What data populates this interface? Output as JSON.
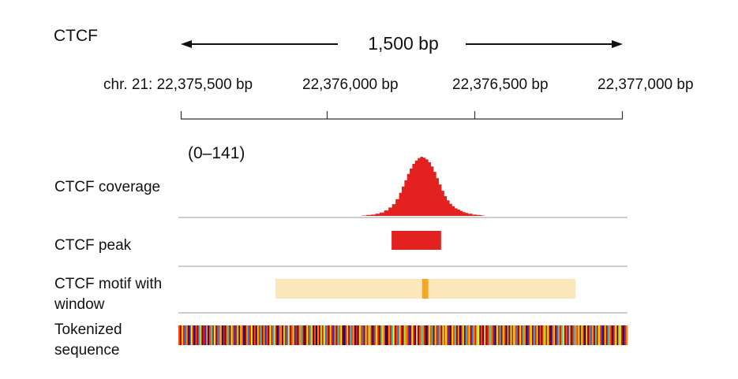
{
  "title": "CTCF",
  "span": {
    "label": "1,500 bp"
  },
  "coordinates": [
    "chr. 21: 22,375,500 bp",
    "22,376,000 bp",
    "22,376,500 bp",
    "22,377,000 bp"
  ],
  "coverage": {
    "label": "CTCF coverage",
    "scale": "(0–141)",
    "color": "#e3211e",
    "max": 141,
    "profile": [
      [
        0.41,
        1
      ],
      [
        0.42,
        2
      ],
      [
        0.43,
        3
      ],
      [
        0.44,
        5
      ],
      [
        0.45,
        8
      ],
      [
        0.46,
        13
      ],
      [
        0.47,
        20
      ],
      [
        0.478,
        28
      ],
      [
        0.486,
        40
      ],
      [
        0.494,
        55
      ],
      [
        0.5,
        70
      ],
      [
        0.506,
        85
      ],
      [
        0.512,
        100
      ],
      [
        0.518,
        113
      ],
      [
        0.524,
        124
      ],
      [
        0.53,
        132
      ],
      [
        0.536,
        138
      ],
      [
        0.542,
        141
      ],
      [
        0.548,
        139
      ],
      [
        0.554,
        135
      ],
      [
        0.56,
        128
      ],
      [
        0.566,
        118
      ],
      [
        0.572,
        105
      ],
      [
        0.578,
        90
      ],
      [
        0.584,
        75
      ],
      [
        0.59,
        60
      ],
      [
        0.596,
        47
      ],
      [
        0.602,
        37
      ],
      [
        0.608,
        29
      ],
      [
        0.614,
        23
      ],
      [
        0.62,
        18
      ],
      [
        0.626,
        15
      ],
      [
        0.632,
        12
      ],
      [
        0.638,
        9
      ],
      [
        0.644,
        7
      ],
      [
        0.65,
        5
      ],
      [
        0.66,
        3
      ],
      [
        0.67,
        2
      ],
      [
        0.68,
        1
      ]
    ]
  },
  "peak": {
    "label": "CTCF peak",
    "color": "#e3211e",
    "start_fraction": 0.477,
    "end_fraction": 0.589
  },
  "motif": {
    "label": "CTCF motif with window",
    "window_color": "#fbe7bb",
    "motif_color": "#f5a623",
    "window_start_fraction": 0.214,
    "window_end_fraction": 0.893,
    "motif_start_fraction": 0.546,
    "motif_end_fraction": 0.56
  },
  "tokens": {
    "label": "Tokenized sequence",
    "palette": [
      "#7f0000",
      "#b50000",
      "#e02016",
      "#ff4a0a",
      "#ff8c00",
      "#ffc800",
      "#f2f20a",
      "#9ee84a",
      "#2ed1a0",
      "#1fb8d8",
      "#1e78e8",
      "#1f2fd0",
      "#0a0a8c",
      "#3a006a"
    ],
    "sequence": [
      3,
      1,
      5,
      2,
      10,
      4,
      0,
      11,
      6,
      2,
      12,
      3,
      1,
      9,
      5,
      0,
      2,
      11,
      4,
      13,
      3,
      8,
      2,
      6,
      1,
      10,
      3,
      5,
      12,
      2,
      0,
      4,
      9,
      1,
      6,
      3,
      11,
      2,
      7,
      0,
      5,
      3,
      12,
      1,
      4,
      10,
      2,
      6,
      0,
      3,
      13,
      5,
      2,
      8,
      1,
      4,
      11,
      3,
      0,
      6,
      2,
      9,
      5,
      1,
      12,
      3,
      4,
      0,
      7,
      2,
      10,
      6,
      1,
      3,
      5,
      11,
      2,
      0,
      4,
      8,
      3,
      13,
      1,
      6,
      2,
      9,
      5,
      0,
      3,
      12,
      4,
      1,
      7,
      2,
      6,
      10,
      3,
      0,
      5,
      2,
      11,
      4,
      1,
      8,
      3,
      6,
      0,
      12,
      2,
      5,
      1,
      9,
      3,
      4,
      13,
      2,
      0,
      6,
      3,
      10,
      1,
      5,
      2,
      7,
      4,
      0,
      11,
      3,
      6,
      2,
      1,
      8,
      5,
      3,
      12,
      0,
      4,
      2,
      9,
      6,
      1,
      3,
      10,
      5,
      2,
      0,
      7,
      4,
      3,
      11,
      1,
      6,
      2,
      13,
      5,
      0,
      3,
      8,
      4,
      2,
      12,
      1,
      6,
      3,
      9,
      0,
      5,
      2,
      10,
      4,
      1,
      7,
      3,
      6,
      2,
      11,
      0,
      5,
      3,
      8,
      1,
      4,
      12,
      2,
      6,
      0,
      9,
      3,
      5,
      1,
      10,
      4,
      2,
      7,
      6,
      0,
      3,
      13,
      5,
      1,
      2,
      8,
      4,
      3,
      11,
      0,
      6,
      2,
      9,
      1,
      5,
      3,
      12,
      4,
      0,
      7,
      2,
      6,
      3,
      10,
      1,
      5,
      2,
      8,
      4,
      0,
      11,
      3,
      6,
      1,
      9,
      2,
      5,
      13,
      3,
      0,
      4,
      7,
      2,
      6,
      1,
      12,
      3,
      5,
      0,
      10,
      4,
      2,
      8,
      6,
      1,
      3,
      11,
      5,
      0,
      2,
      9,
      4,
      3,
      7,
      1,
      6,
      2,
      12,
      5,
      0,
      3,
      10,
      4,
      1,
      8,
      2,
      6,
      3,
      11,
      0,
      5,
      1,
      9,
      4,
      2,
      13,
      3,
      6,
      0,
      7,
      5,
      1,
      12,
      2,
      4
    ]
  }
}
